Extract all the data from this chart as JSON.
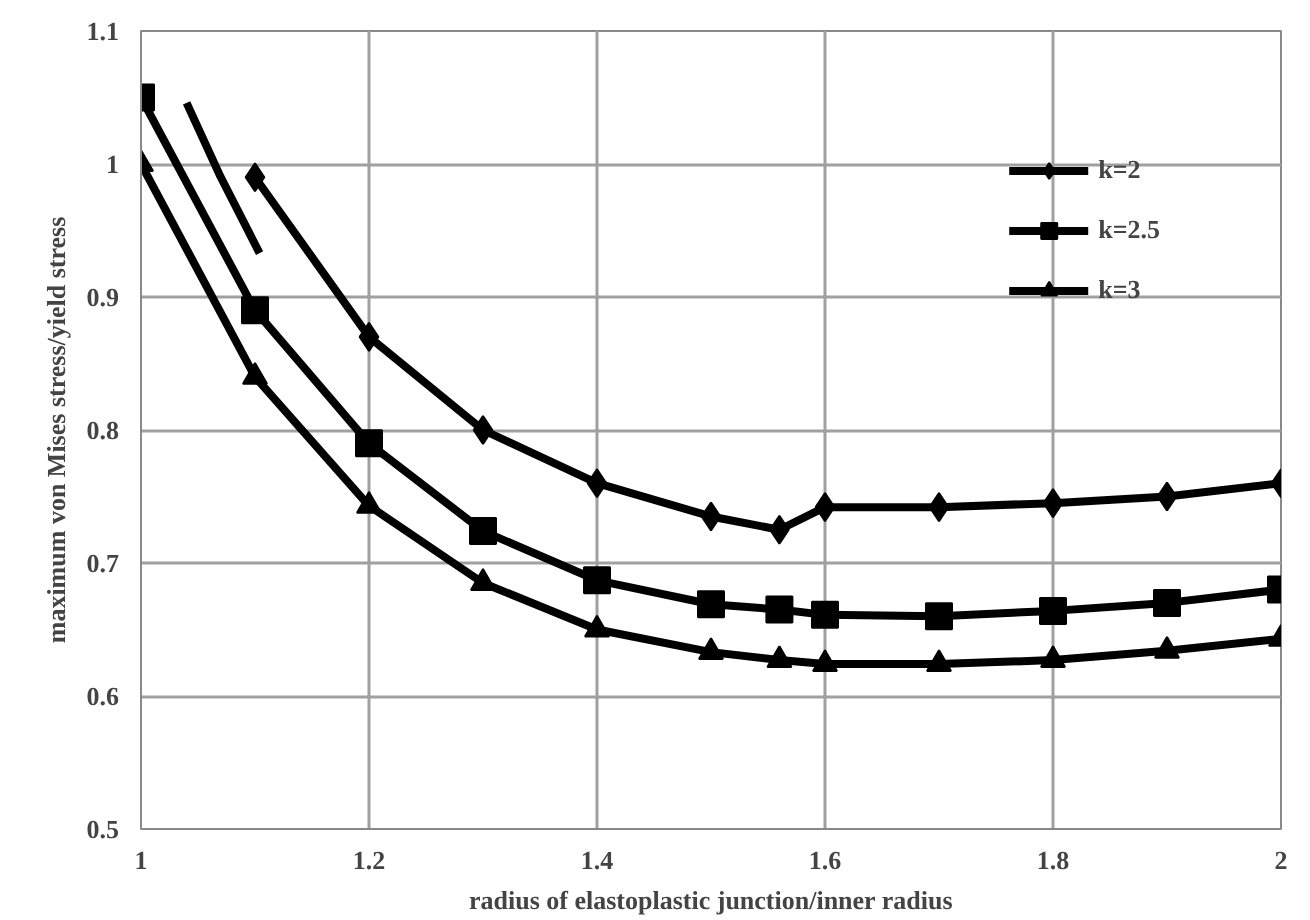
{
  "chart_data": {
    "type": "line",
    "xlabel": "radius of elastoplastic junction/inner radius",
    "ylabel": "maximum von Mises stress/yield stress",
    "xlim": [
      1,
      2
    ],
    "xticks": [
      1,
      1.2,
      1.4,
      1.6,
      1.8,
      2
    ],
    "ylim": [
      0.5,
      1.1
    ],
    "yticks": [
      0.5,
      0.6,
      0.7,
      0.8,
      0.9,
      1,
      1.1
    ],
    "grid": true,
    "legend": "top right",
    "line_style": "solid",
    "series": [
      {
        "name": "k=2",
        "color": "#000000",
        "marker": "diamond",
        "x": [
          1.1,
          1.2,
          1.3,
          1.4,
          1.5,
          1.56,
          1.6,
          1.7,
          1.8,
          1.9,
          2
        ],
        "values": [
          0.99,
          0.87,
          0.8,
          0.76,
          0.735,
          0.725,
          0.742,
          0.742,
          0.745,
          0.75,
          0.76
        ]
      },
      {
        "name": "k=2.5",
        "color": "#000000",
        "marker": "square",
        "x": [
          1,
          1.1,
          1.2,
          1.3,
          1.4,
          1.5,
          1.56,
          1.6,
          1.7,
          1.8,
          1.9,
          2
        ],
        "values": [
          1.05,
          0.89,
          0.79,
          0.724,
          0.687,
          0.669,
          0.665,
          0.661,
          0.66,
          0.664,
          0.67,
          0.68
        ]
      },
      {
        "name": "k=3",
        "color": "#000000",
        "marker": "triangle",
        "x": [
          1,
          1.1,
          1.2,
          1.3,
          1.4,
          1.5,
          1.56,
          1.6,
          1.7,
          1.8,
          1.9,
          2
        ],
        "values": [
          1.0,
          0.84,
          0.743,
          0.685,
          0.65,
          0.633,
          0.627,
          0.624,
          0.624,
          0.627,
          0.634,
          0.643
        ]
      },
      {
        "color": "#000000",
        "marker": "none",
        "x": [
          1.04,
          1.07,
          1.104
        ],
        "values": [
          1.046,
          0.99,
          0.933
        ]
      }
    ]
  }
}
